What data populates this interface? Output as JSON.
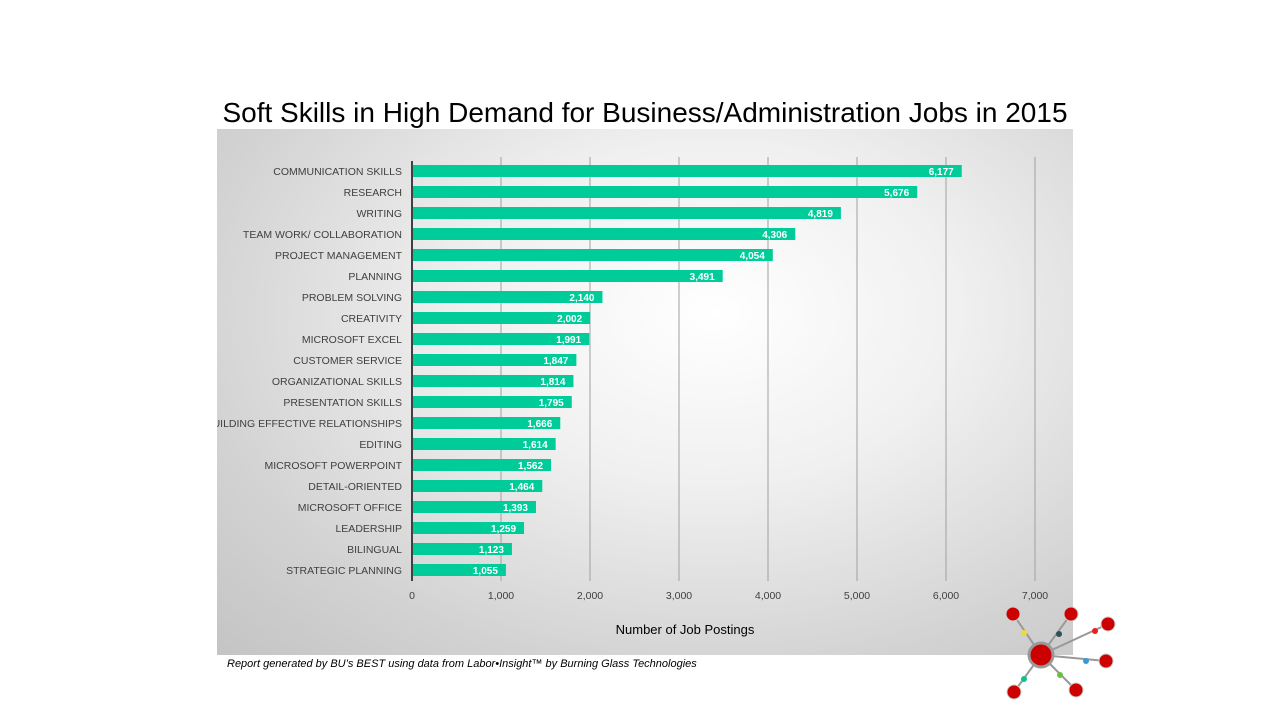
{
  "chart_data": {
    "type": "bar",
    "orientation": "horizontal",
    "title": "Soft Skills in High Demand for Business/Administration Jobs in 2015",
    "xlabel": "Number of Job Postings",
    "ylabel": "",
    "xlim": [
      0,
      7000
    ],
    "xticks": [
      "0",
      "1,000",
      "2,000",
      "3,000",
      "4,000",
      "5,000",
      "6,000",
      "7,000"
    ],
    "grid": "vertical",
    "bar_color": "#00CC99",
    "categories": [
      "COMMUNICATION SKILLS",
      "RESEARCH",
      "WRITING",
      "TEAM WORK/ COLLABORATION",
      "PROJECT MANAGEMENT",
      "PLANNING",
      "PROBLEM SOLVING",
      "CREATIVITY",
      "MICROSOFT EXCEL",
      "CUSTOMER SERVICE",
      "ORGANIZATIONAL SKILLS",
      "PRESENTATION SKILLS",
      "BUILDING EFFECTIVE RELATIONSHIPS",
      "EDITING",
      "MICROSOFT POWERPOINT",
      "DETAIL-ORIENTED",
      "MICROSOFT OFFICE",
      "LEADERSHIP",
      "BILINGUAL",
      "STRATEGIC PLANNING"
    ],
    "values": [
      6177,
      5676,
      4819,
      4306,
      4054,
      3491,
      2140,
      2002,
      1991,
      1847,
      1814,
      1795,
      1666,
      1614,
      1562,
      1464,
      1393,
      1259,
      1123,
      1055
    ],
    "data_labels": [
      "6,177",
      "5,676",
      "4,819",
      "4,306",
      "4,054",
      "3,491",
      "2,140",
      "2,002",
      "1,991",
      "1,847",
      "1,814",
      "1,795",
      "1,666",
      "1,614",
      "1,562",
      "1,464",
      "1,393",
      "1,259",
      "1,123",
      "1,055"
    ]
  },
  "footnote": "Report generated by BU’s BEST using data from Labor•Insight™ by Burning Glass Technologies",
  "logo": {
    "icon": "molecule-network-logo",
    "node_color": "#CC0000"
  }
}
